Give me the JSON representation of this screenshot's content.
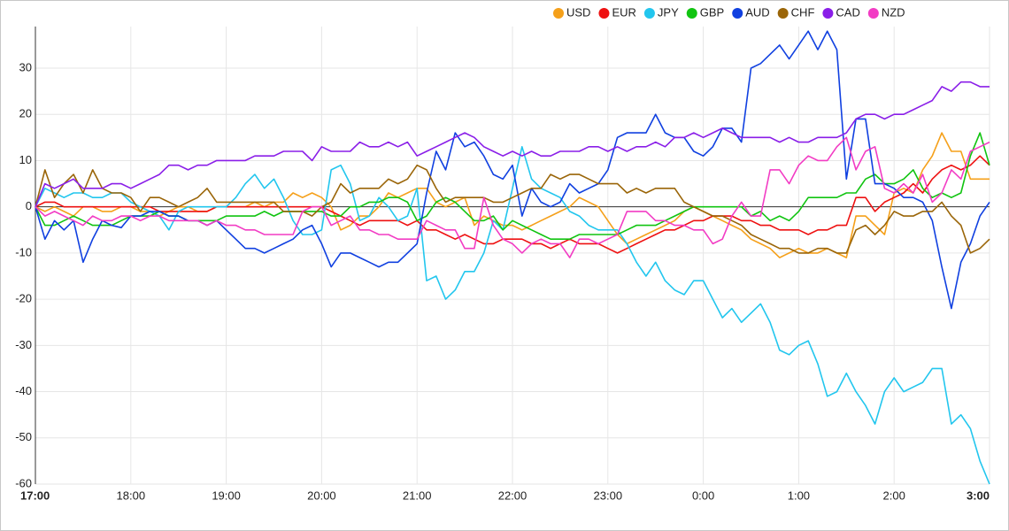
{
  "chart_data": {
    "type": "line",
    "categories": [
      "17:00",
      null,
      null,
      null,
      null,
      null,
      null,
      null,
      null,
      null,
      "18:00",
      null,
      null,
      null,
      null,
      null,
      null,
      null,
      null,
      null,
      "19:00",
      null,
      null,
      null,
      null,
      null,
      null,
      null,
      null,
      null,
      "20:00",
      null,
      null,
      null,
      null,
      null,
      null,
      null,
      null,
      null,
      "21:00",
      null,
      null,
      null,
      null,
      null,
      null,
      null,
      null,
      null,
      "22:00",
      null,
      null,
      null,
      null,
      null,
      null,
      null,
      null,
      null,
      "23:00",
      null,
      null,
      null,
      null,
      null,
      null,
      null,
      null,
      null,
      "0:00",
      null,
      null,
      null,
      null,
      null,
      null,
      null,
      null,
      null,
      "1:00",
      null,
      null,
      null,
      null,
      null,
      null,
      null,
      null,
      null,
      "2:00",
      null,
      null,
      null,
      null,
      null,
      null,
      null,
      null,
      null,
      "3:00"
    ],
    "ylim": [
      -60,
      39
    ],
    "yticks": [
      -60,
      -50,
      -40,
      -30,
      -20,
      -10,
      0,
      10,
      20,
      30
    ],
    "grid": true,
    "series": [
      {
        "name": "USD",
        "color": "#f5a01a",
        "values": [
          0,
          -1,
          0,
          -1,
          -2,
          0,
          0,
          -1,
          -1,
          0,
          0,
          -1,
          -1,
          -2,
          -1,
          0,
          0,
          -1,
          -1,
          0,
          0,
          0,
          0,
          1,
          0,
          1,
          1,
          3,
          2,
          3,
          2,
          0,
          -5,
          -4,
          -2,
          -2,
          0,
          3,
          2,
          3,
          4,
          4,
          1,
          0,
          1,
          2,
          -4,
          -2,
          -3,
          -4,
          -4,
          -5,
          -4,
          -3,
          -2,
          -1,
          0,
          2,
          1,
          0,
          -3,
          -6,
          -8,
          -7,
          -6,
          -5,
          -4,
          -3,
          -1,
          0,
          -1,
          -2,
          -3,
          -4,
          -5,
          -7,
          -8,
          -9,
          -11,
          -10,
          -9,
          -10,
          -10,
          -9,
          -10,
          -11,
          -2,
          -2,
          -4,
          -6,
          3,
          4,
          3,
          8,
          11,
          16,
          12,
          12,
          6,
          6,
          6
        ]
      },
      {
        "name": "EUR",
        "color": "#ee1111",
        "values": [
          0,
          1,
          1,
          0,
          0,
          0,
          0,
          0,
          0,
          0,
          0,
          0,
          0,
          -1,
          -1,
          -1,
          -1,
          -1,
          -1,
          0,
          0,
          0,
          0,
          0,
          0,
          0,
          0,
          0,
          0,
          0,
          0,
          -1,
          -2,
          -3,
          -4,
          -3,
          -3,
          -3,
          -3,
          -4,
          -3,
          -5,
          -5,
          -6,
          -7,
          -6,
          -7,
          -8,
          -8,
          -7,
          -7,
          -7,
          -8,
          -8,
          -9,
          -8,
          -7,
          -8,
          -8,
          -8,
          -9,
          -10,
          -9,
          -8,
          -7,
          -6,
          -5,
          -5,
          -4,
          -3,
          -3,
          -2,
          -2,
          -2,
          -3,
          -3,
          -4,
          -4,
          -5,
          -5,
          -5,
          -6,
          -5,
          -5,
          -4,
          -4,
          2,
          2,
          -1,
          1,
          2,
          3,
          5,
          3,
          6,
          8,
          9,
          8,
          9,
          11,
          9
        ]
      },
      {
        "name": "JPY",
        "color": "#22c6ee",
        "values": [
          0,
          4,
          3,
          2,
          3,
          3,
          2,
          2,
          3,
          3,
          1,
          0,
          -1,
          -2,
          -5,
          -1,
          0,
          0,
          0,
          0,
          0,
          2,
          5,
          7,
          4,
          6,
          2,
          -3,
          -6,
          -6,
          -5,
          8,
          9,
          5,
          -3,
          -2,
          2,
          0,
          -3,
          -2,
          4,
          -16,
          -15,
          -20,
          -18,
          -14,
          -14,
          -10,
          -3,
          -5,
          4,
          13,
          6,
          4,
          3,
          2,
          -1,
          -2,
          -4,
          -5,
          -5,
          -5,
          -8,
          -12,
          -15,
          -12,
          -16,
          -18,
          -19,
          -16,
          -16,
          -20,
          -24,
          -22,
          -25,
          -23,
          -21,
          -25,
          -31,
          -32,
          -30,
          -29,
          -34,
          -41,
          -40,
          -36,
          -40,
          -43,
          -47,
          -40,
          -37,
          -40,
          -39,
          -38,
          -35,
          -35,
          -47,
          -45,
          -48,
          -55,
          -60
        ]
      },
      {
        "name": "GBP",
        "color": "#11c411",
        "values": [
          0,
          -4,
          -4,
          -3,
          -2,
          -3,
          -4,
          -4,
          -4,
          -3,
          -2,
          -2,
          -2,
          -1,
          -2,
          -2,
          -3,
          -3,
          -3,
          -3,
          -2,
          -2,
          -2,
          -2,
          -1,
          -2,
          -1,
          -1,
          -1,
          -1,
          -1,
          -2,
          -2,
          0,
          0,
          1,
          1,
          2,
          2,
          1,
          -3,
          -2,
          1,
          2,
          1,
          -1,
          -3,
          -3,
          -2,
          -5,
          -3,
          -4,
          -5,
          -6,
          -7,
          -7,
          -7,
          -6,
          -6,
          -6,
          -6,
          -6,
          -5,
          -4,
          -4,
          -4,
          -3,
          -2,
          -1,
          0,
          0,
          0,
          0,
          0,
          0,
          -2,
          -1,
          -3,
          -2,
          -3,
          -1,
          2,
          2,
          2,
          2,
          3,
          3,
          6,
          7,
          5,
          5,
          6,
          8,
          4,
          2,
          3,
          2,
          3,
          11,
          16,
          9
        ]
      },
      {
        "name": "AUD",
        "color": "#1040e0",
        "values": [
          0,
          -7,
          -3,
          -5,
          -3,
          -12,
          -7,
          -3,
          -4,
          -4.5,
          -2,
          -2,
          -1,
          -1,
          -2,
          -2,
          -3,
          -3,
          -4,
          -3,
          -5,
          -7,
          -9,
          -9,
          -10,
          -9,
          -8,
          -7,
          -5,
          -4,
          -8,
          -13,
          -10,
          -10,
          -11,
          -12,
          -13,
          -12,
          -12,
          -10,
          -8,
          3,
          12,
          8,
          16,
          13,
          14,
          11,
          7,
          6,
          9,
          -2,
          4,
          1,
          0,
          1,
          5,
          3,
          4,
          5,
          8,
          15,
          16,
          16,
          16,
          20,
          16,
          15,
          15,
          12,
          11,
          13,
          17,
          17,
          14,
          30,
          31,
          33,
          35,
          32,
          35,
          38,
          34,
          38,
          34,
          6,
          19,
          19,
          5,
          5,
          4,
          2,
          2,
          1,
          -3,
          -13,
          -22,
          -12,
          -8,
          -2,
          1
        ]
      },
      {
        "name": "CHF",
        "color": "#9a6508",
        "values": [
          0,
          8,
          2,
          5,
          7,
          3,
          8,
          4,
          3,
          3,
          2,
          -1,
          2,
          2,
          1,
          0,
          1,
          2,
          4,
          1,
          1,
          1,
          1,
          1,
          1,
          1,
          -1,
          -1,
          -1,
          -2,
          0,
          1,
          5,
          3,
          4,
          4,
          4,
          6,
          5,
          6,
          9,
          8,
          4,
          1,
          2,
          2,
          2,
          2,
          1,
          1,
          2,
          3,
          4,
          4,
          7,
          6,
          7,
          7,
          6,
          5,
          5,
          5,
          3,
          4,
          3,
          4,
          4,
          4,
          1,
          0,
          -1,
          -2,
          -2,
          -3,
          -4,
          -6,
          -7,
          -8,
          -9,
          -9,
          -10,
          -10,
          -9,
          -9,
          -10,
          -10,
          -5,
          -4,
          -6,
          -4,
          -1,
          -2,
          -2,
          -1,
          -1,
          1,
          -2,
          -4,
          -10,
          -9,
          -7
        ]
      },
      {
        "name": "CAD",
        "color": "#8a1ee8",
        "values": [
          0,
          5,
          4,
          5,
          6,
          4,
          4,
          4,
          5,
          5,
          4,
          5,
          6,
          7,
          9,
          9,
          8,
          9,
          9,
          10,
          10,
          10,
          10,
          11,
          11,
          11,
          12,
          12,
          12,
          10,
          13,
          12,
          12,
          12,
          14,
          13,
          13,
          14,
          13,
          14,
          11,
          12,
          13,
          14,
          15,
          16,
          15,
          13,
          12,
          11,
          12,
          11,
          12,
          11,
          11,
          12,
          12,
          12,
          13,
          13,
          12,
          13,
          12,
          13,
          13,
          14,
          13,
          15,
          15,
          16,
          15,
          16,
          17,
          16,
          15,
          15,
          15,
          15,
          14,
          15,
          14,
          14,
          15,
          15,
          15,
          16,
          19,
          20,
          20,
          19,
          20,
          20,
          21,
          22,
          23,
          26,
          25,
          27,
          27,
          26,
          26
        ]
      },
      {
        "name": "NZD",
        "color": "#f23cc4",
        "values": [
          0,
          -2,
          -1,
          -2,
          -3,
          -4,
          -2,
          -3,
          -3,
          -2,
          -2,
          -3,
          -2,
          -2,
          -3,
          -3,
          -3,
          -3,
          -4,
          -3,
          -4,
          -4,
          -5,
          -5,
          -6,
          -6,
          -6,
          -6,
          -1,
          0,
          0,
          -4,
          -3,
          -2,
          -5,
          -5,
          -6,
          -6,
          -7,
          -7,
          -7,
          -3,
          -4,
          -5,
          -5,
          -9,
          -9,
          2,
          -4,
          -7,
          -8,
          -10,
          -8,
          -7,
          -8,
          -8,
          -11,
          -7,
          -7,
          -8,
          -7,
          -6,
          -1,
          -1,
          -1,
          -3,
          -3,
          -4,
          -4,
          -5,
          -5,
          -8,
          -7,
          -2,
          1,
          -2,
          -2,
          8,
          8,
          5,
          9,
          11,
          10,
          10,
          13,
          15,
          8,
          12,
          13,
          4,
          3,
          5,
          3,
          7,
          1,
          3,
          8,
          6,
          12,
          13,
          14
        ]
      }
    ]
  }
}
